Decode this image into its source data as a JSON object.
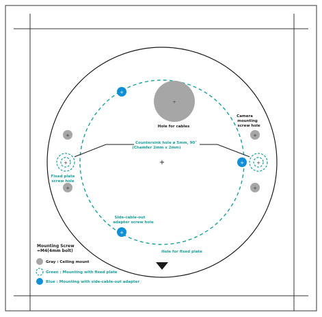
{
  "labels": {
    "holes_for_cables": "Hole for cables",
    "camera_mounting_1": "Camera",
    "camera_mounting_2": "mounting",
    "camera_mounting_3": "screw hole",
    "countersink_1": "Countersink hole ø 5mm, 90˚",
    "countersink_2": "(Chamfer 2mm x 2mm)",
    "fixed_plate_left_1": "Fixed plate",
    "fixed_plate_left_2": "screw hole",
    "side_cable_1": "Side-cable-out",
    "side_cable_2": "adapter screw hole",
    "fixed_plate_bottom": "Hole for fixed plate"
  },
  "legend": {
    "title_1": "Mounting Screw",
    "title_2": "=M4(4mm bolt)",
    "gray": "Gray : Ceiling mount",
    "green": "Green : Mounting with fixed plate",
    "blue": "Blue : Mounting with side-cable-out adapter"
  },
  "colors": {
    "gray": "#a6a6a6",
    "teal": "#1a9e9a",
    "blue": "#0f8fd6",
    "line": "#1a1a1a"
  }
}
